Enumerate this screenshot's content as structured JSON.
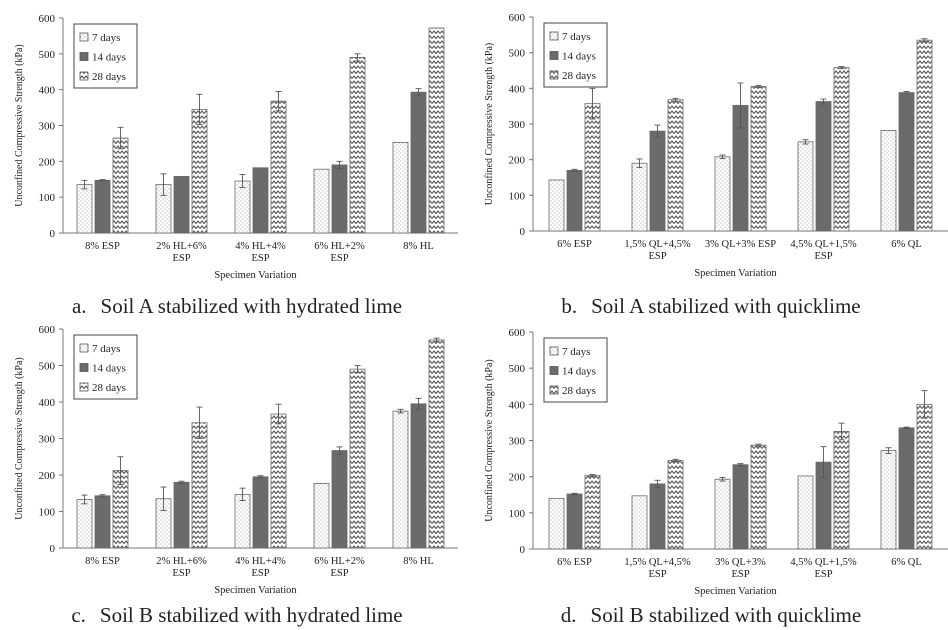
{
  "chart_data": [
    {
      "type": "bar",
      "caption_letter": "a.",
      "caption_text": "Soil A stabilized with hydrated lime",
      "xlabel": "Specimen Variation",
      "ylabel": "Unconfined Compressive Strength (kPa)",
      "ylim": [
        0,
        600
      ],
      "yticks": [
        0,
        100,
        200,
        300,
        400,
        500,
        600
      ],
      "grid": false,
      "legend_position": "top-left",
      "categories": [
        [
          "8% ESP"
        ],
        [
          "2% HL+6%",
          "ESP"
        ],
        [
          "4% HL+4%",
          "ESP"
        ],
        [
          "6% HL+2%",
          "ESP"
        ],
        [
          "8% HL"
        ]
      ],
      "series": [
        {
          "name": "7 days",
          "values": [
            135,
            135,
            145,
            178,
            253
          ],
          "errors": [
            12,
            30,
            18,
            0,
            0
          ]
        },
        {
          "name": "14 days",
          "values": [
            147,
            158,
            182,
            190,
            393
          ],
          "errors": [
            2,
            0,
            0,
            10,
            10
          ]
        },
        {
          "name": "28 days",
          "values": [
            265,
            345,
            368,
            490,
            572
          ],
          "errors": [
            30,
            42,
            27,
            10,
            0
          ]
        }
      ]
    },
    {
      "type": "bar",
      "caption_letter": "b.",
      "caption_text": "Soil A stabilized with quicklime",
      "xlabel": "Specimen Variation",
      "ylabel": "Unconfined Compressive Strength (kPa)",
      "ylim": [
        0,
        600
      ],
      "yticks": [
        0,
        100,
        200,
        300,
        400,
        500,
        600
      ],
      "grid": false,
      "legend_position": "top-left",
      "categories": [
        [
          "6% ESP"
        ],
        [
          "1,5% QL+4,5%",
          "ESP"
        ],
        [
          "3% QL+3% ESP"
        ],
        [
          "4,5% QL+1,5%",
          "ESP"
        ],
        [
          "6% QL"
        ]
      ],
      "series": [
        {
          "name": "7 days",
          "values": [
            143,
            190,
            208,
            250,
            282
          ],
          "errors": [
            0,
            12,
            5,
            6,
            0
          ]
        },
        {
          "name": "14 days",
          "values": [
            170,
            280,
            352,
            363,
            388
          ],
          "errors": [
            3,
            17,
            63,
            7,
            3
          ]
        },
        {
          "name": "28 days",
          "values": [
            357,
            368,
            405,
            458,
            535
          ],
          "errors": [
            43,
            4,
            3,
            3,
            4
          ]
        }
      ]
    },
    {
      "type": "bar",
      "caption_letter": "c.",
      "caption_text": "Soil B stabilized with hydrated lime",
      "xlabel": "Specimen Variation",
      "ylabel": "Unconfined Compressive Strength (kPa)",
      "ylim": [
        0,
        600
      ],
      "yticks": [
        0,
        100,
        200,
        300,
        400,
        500,
        600
      ],
      "grid": false,
      "legend_position": "top-left",
      "categories": [
        [
          "8% ESP"
        ],
        [
          "2% HL+6%",
          "ESP"
        ],
        [
          "4% HL+4%",
          "ESP"
        ],
        [
          "6% HL+2%",
          "ESP"
        ],
        [
          "8% HL"
        ]
      ],
      "series": [
        {
          "name": "7 days",
          "values": [
            133,
            135,
            147,
            177,
            375
          ],
          "errors": [
            12,
            32,
            17,
            0,
            5
          ]
        },
        {
          "name": "14 days",
          "values": [
            143,
            180,
            195,
            267,
            395
          ],
          "errors": [
            3,
            3,
            3,
            10,
            15
          ]
        },
        {
          "name": "28 days",
          "values": [
            212,
            343,
            367,
            490,
            570
          ],
          "errors": [
            38,
            43,
            27,
            10,
            5
          ]
        }
      ]
    },
    {
      "type": "bar",
      "caption_letter": "d.",
      "caption_text": "Soil B stabilized with quicklime",
      "xlabel": "Specimen Variation",
      "ylabel": "Unconfined Compressive Strength (kPa)",
      "ylim": [
        0,
        600
      ],
      "yticks": [
        0,
        100,
        200,
        300,
        400,
        500,
        600
      ],
      "grid": false,
      "legend_position": "top-left",
      "categories": [
        [
          "6% ESP"
        ],
        [
          "1,5% QL+4,5%",
          "ESP"
        ],
        [
          "3% QL+3%",
          "ESP"
        ],
        [
          "4,5% QL+1,5%",
          "ESP"
        ],
        [
          "6% QL"
        ]
      ],
      "series": [
        {
          "name": "7 days",
          "values": [
            140,
            147,
            193,
            202,
            272
          ],
          "errors": [
            0,
            0,
            5,
            0,
            8
          ]
        },
        {
          "name": "14 days",
          "values": [
            152,
            180,
            233,
            240,
            335
          ],
          "errors": [
            2,
            10,
            3,
            43,
            2
          ]
        },
        {
          "name": "28 days",
          "values": [
            203,
            245,
            287,
            325,
            400
          ],
          "errors": [
            3,
            3,
            3,
            23,
            38
          ]
        }
      ]
    }
  ]
}
